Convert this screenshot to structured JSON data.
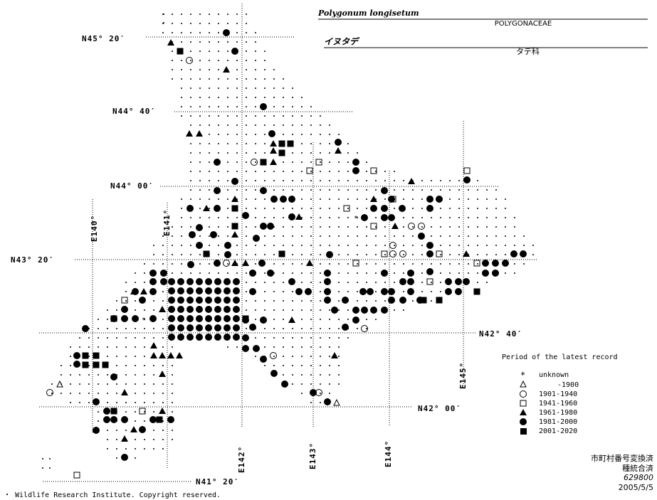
{
  "header": {
    "scientific_name": "Polygonum longisetum",
    "family": "POLYGONACEAE",
    "japanese_name": "イヌタデ",
    "japanese_family": "タデ科"
  },
  "map": {
    "latitude_labels": [
      "N45° 20′",
      "N44° 40′",
      "N44° 00′",
      "N43° 20′",
      "N42° 40′",
      "N42° 00′",
      "N41° 20′"
    ],
    "longitude_labels": [
      "E140°",
      "E141°",
      "E142°",
      "E143°",
      "E144°",
      "E145°"
    ]
  },
  "legend": {
    "title": "Period of the latest record",
    "entries": [
      "unknown",
      "-1900",
      "1901-1940",
      "1941-1960",
      "1961-1980",
      "1981-2000",
      "2001-2020"
    ]
  },
  "notes": [
    "市町村番号変換済",
    "種統合済",
    "629800",
    "2005/5/5"
  ],
  "copyright": "・ Wildlife Research Institute. Copyright reserved."
}
